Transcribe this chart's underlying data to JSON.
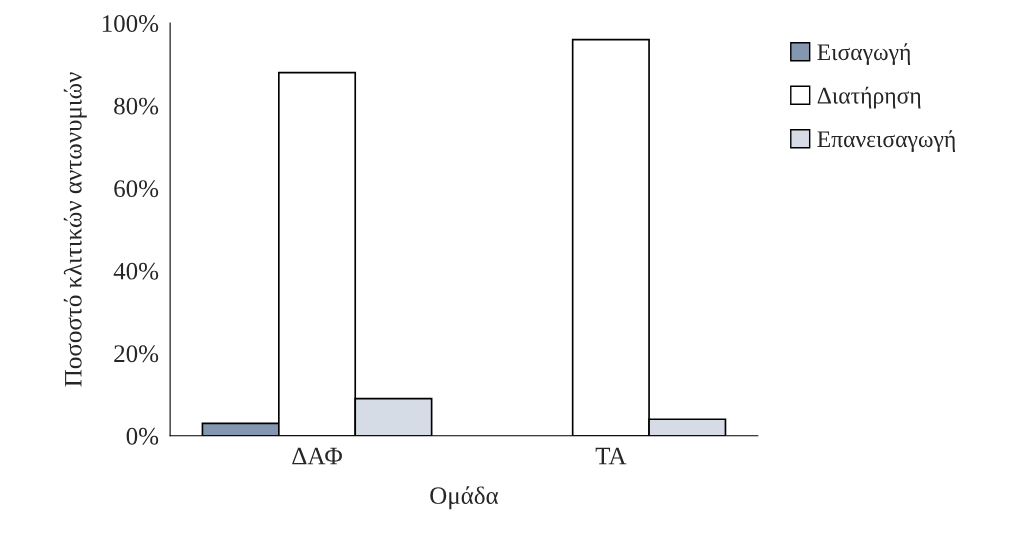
{
  "chart_data": {
    "type": "bar",
    "xlabel": "Ομάδα",
    "ylabel": "Ποσοστό κλιτικών αντωνυμιών",
    "categories": [
      "ΔΑΦ",
      "ΤΑ"
    ],
    "series": [
      {
        "name": "Εισαγωγή",
        "color": "#8497b0",
        "values": [
          3,
          0
        ]
      },
      {
        "name": "Διατήρηση",
        "color": "#ffffff",
        "values": [
          88,
          96
        ]
      },
      {
        "name": "Επανεισαγωγή",
        "color": "#d6dce5",
        "values": [
          9,
          4
        ]
      }
    ],
    "ylim": [
      0,
      100
    ],
    "yticks": [
      {
        "value": 0,
        "label": "0%"
      },
      {
        "value": 20,
        "label": "20%"
      },
      {
        "value": 40,
        "label": "40%"
      },
      {
        "value": 60,
        "label": "60%"
      },
      {
        "value": 80,
        "label": "80%"
      },
      {
        "value": 100,
        "label": "100%"
      }
    ],
    "grid": false,
    "legend": "right"
  }
}
